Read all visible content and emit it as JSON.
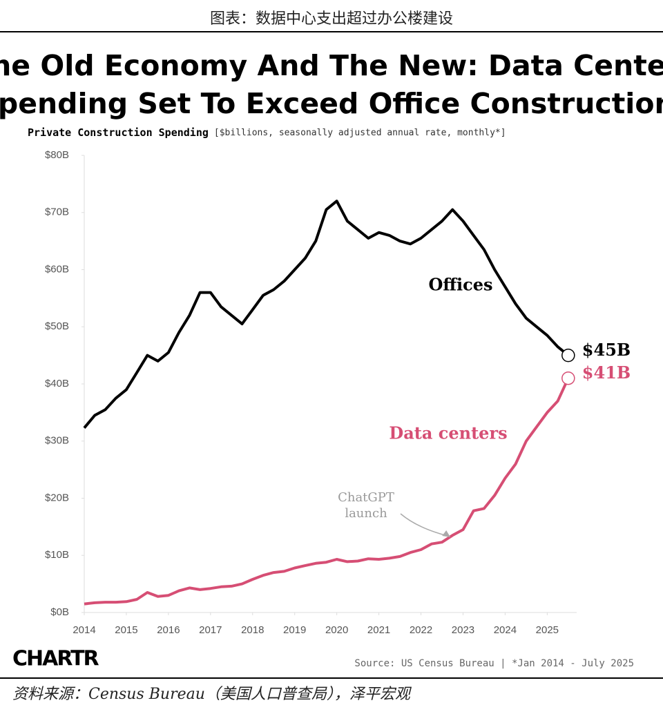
{
  "header": "图表：数据中心支出超过办公楼建设",
  "footer": "资料来源：Census Bureau（美国人口普查局），泽平宏观",
  "chart_data": {
    "type": "line",
    "title": [
      "The Old Economy And The New: Data Center",
      "Spending Set To Exceed Office Construction"
    ],
    "subtitle": "Private Construction Spending",
    "subtitle_note": "[$billions, seasonally adjusted annual rate, monthly*]",
    "source": "Source: US Census Bureau | *Jan 2014 - July 2025",
    "brand": "CHARTR",
    "annotation": {
      "lines": [
        "ChatGPT",
        "launch"
      ],
      "x": 2022.7
    },
    "x": [
      2014,
      2014.25,
      2014.5,
      2014.75,
      2015,
      2015.25,
      2015.5,
      2015.75,
      2016,
      2016.25,
      2016.5,
      2016.75,
      2017,
      2017.25,
      2017.5,
      2017.75,
      2018,
      2018.25,
      2018.5,
      2018.75,
      2019,
      2019.25,
      2019.5,
      2019.75,
      2020,
      2020.25,
      2020.5,
      2020.75,
      2021,
      2021.25,
      2021.5,
      2021.75,
      2022,
      2022.25,
      2022.5,
      2022.75,
      2023,
      2023.25,
      2023.5,
      2023.75,
      2024,
      2024.25,
      2024.5,
      2024.75,
      2025,
      2025.25,
      2025.5
    ],
    "series": [
      {
        "name": "Offices",
        "color": "#000000",
        "last_label": "$45B",
        "values": [
          32.3,
          34.5,
          35.5,
          37.5,
          39,
          42,
          45,
          44,
          45.5,
          49,
          52,
          56,
          56,
          53.5,
          52,
          50.5,
          53,
          55.5,
          56.5,
          58,
          60,
          62,
          65,
          70.5,
          72,
          68.5,
          67,
          65.5,
          66.5,
          66,
          65,
          64.5,
          65.5,
          67,
          68.5,
          70.5,
          68.5,
          66,
          63.5,
          60,
          57,
          54,
          51.5,
          50,
          48.5,
          46.5,
          45
        ]
      },
      {
        "name": "Data centers",
        "color": "#d64e74",
        "last_label": "$41B",
        "values": [
          1.5,
          1.7,
          1.8,
          1.8,
          1.9,
          2.3,
          3.5,
          2.8,
          3.0,
          3.8,
          4.3,
          4.0,
          4.2,
          4.5,
          4.6,
          5.0,
          5.8,
          6.5,
          7.0,
          7.2,
          7.8,
          8.2,
          8.6,
          8.8,
          9.3,
          8.9,
          9.0,
          9.4,
          9.3,
          9.5,
          9.8,
          10.5,
          11.0,
          12.0,
          12.3,
          13.5,
          14.5,
          17.8,
          18.2,
          20.5,
          23.5,
          26,
          30,
          32.5,
          35,
          37,
          41
        ]
      }
    ],
    "xlim": [
      2014,
      2025.7
    ],
    "xticks": [
      2014,
      2015,
      2016,
      2017,
      2018,
      2019,
      2020,
      2021,
      2022,
      2023,
      2024,
      2025
    ],
    "ylim": [
      0,
      80
    ],
    "yticks": [
      {
        "value": 0,
        "label": "$0B"
      },
      {
        "value": 10,
        "label": "$10B"
      },
      {
        "value": 20,
        "label": "$20B"
      },
      {
        "value": 30,
        "label": "$30B"
      },
      {
        "value": 40,
        "label": "$40B"
      },
      {
        "value": 50,
        "label": "$50B"
      },
      {
        "value": 60,
        "label": "$60B"
      },
      {
        "value": 70,
        "label": "$70B"
      },
      {
        "value": 80,
        "label": "$80B"
      }
    ]
  }
}
